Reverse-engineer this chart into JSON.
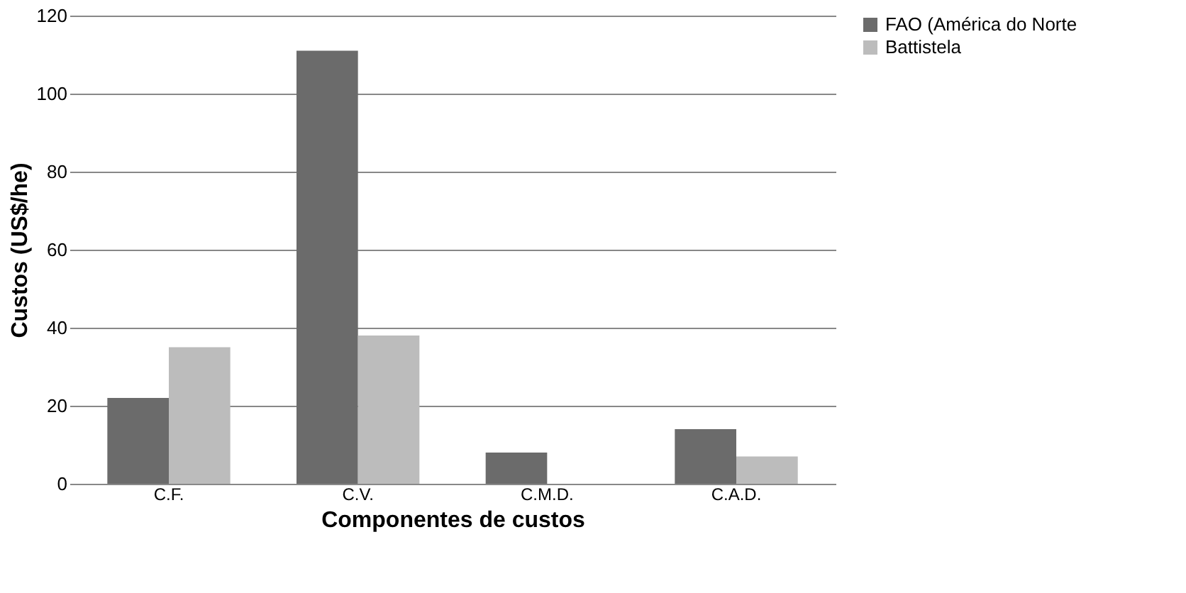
{
  "chart_data": {
    "type": "bar",
    "xlabel": "Componentes de custos",
    "ylabel": "Custos (US$/he)",
    "categories": [
      "C.F.",
      "C.V.",
      "C.M.D.",
      "C.A.D."
    ],
    "series": [
      {
        "name": "FAO (América do Norte",
        "color": "#6b6b6b",
        "values": [
          22,
          111,
          8,
          14
        ]
      },
      {
        "name": "Battistela",
        "color": "#bcbcbc",
        "values": [
          35,
          38,
          null,
          7
        ]
      }
    ],
    "ylim": [
      0,
      120
    ],
    "yticks": [
      0,
      20,
      40,
      60,
      80,
      100,
      120
    ],
    "grid": "y",
    "legend": "right"
  }
}
